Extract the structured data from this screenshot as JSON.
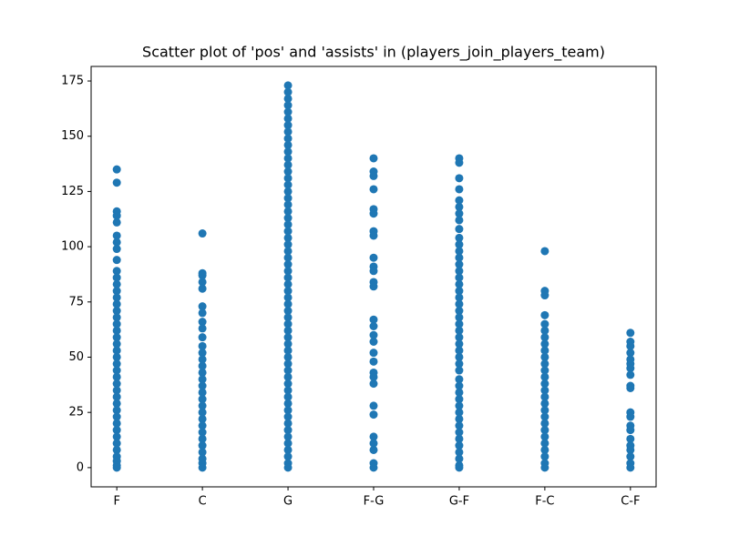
{
  "chart_data": {
    "type": "scatter",
    "title": "Scatter plot of 'pos' and 'assists' in (players_join_players_team)",
    "categories": [
      "F",
      "C",
      "G",
      "F-G",
      "G-F",
      "F-C",
      "C-F"
    ],
    "color": "#1f77b4",
    "ylim": [
      -8.7,
      181.6
    ],
    "yticks": [
      0,
      25,
      50,
      75,
      100,
      125,
      150,
      175
    ],
    "x": [
      "F",
      "F",
      "F",
      "F",
      "F",
      "F",
      "F",
      "F",
      "F",
      "F",
      "F",
      "F",
      "F",
      "F",
      "F",
      "F",
      "F",
      "F",
      "F",
      "F",
      "F",
      "F",
      "F",
      "F",
      "F",
      "F",
      "F",
      "F",
      "F",
      "F",
      "F",
      "F",
      "F",
      "F",
      "F",
      "F",
      "F",
      "F",
      "F",
      "F",
      "F",
      "C",
      "C",
      "C",
      "C",
      "C",
      "C",
      "C",
      "C",
      "C",
      "C",
      "C",
      "C",
      "C",
      "C",
      "C",
      "C",
      "C",
      "C",
      "C",
      "C",
      "C",
      "C",
      "C",
      "C",
      "C",
      "C",
      "C",
      "C",
      "C",
      "C",
      "G",
      "G",
      "G",
      "G",
      "G",
      "G",
      "G",
      "G",
      "G",
      "G",
      "G",
      "G",
      "G",
      "G",
      "G",
      "G",
      "G",
      "G",
      "G",
      "G",
      "G",
      "G",
      "G",
      "G",
      "G",
      "G",
      "G",
      "G",
      "G",
      "G",
      "G",
      "G",
      "G",
      "G",
      "G",
      "G",
      "G",
      "G",
      "G",
      "G",
      "G",
      "G",
      "G",
      "G",
      "G",
      "G",
      "G",
      "G",
      "G",
      "G",
      "G",
      "G",
      "G",
      "G",
      "G",
      "G",
      "G",
      "G",
      "G",
      "F-G",
      "F-G",
      "F-G",
      "F-G",
      "F-G",
      "F-G",
      "F-G",
      "F-G",
      "F-G",
      "F-G",
      "F-G",
      "F-G",
      "F-G",
      "F-G",
      "F-G",
      "F-G",
      "F-G",
      "F-G",
      "F-G",
      "F-G",
      "F-G",
      "F-G",
      "F-G",
      "F-G",
      "F-G",
      "F-G",
      "F-G",
      "F-G",
      "F-G",
      "G-F",
      "G-F",
      "G-F",
      "G-F",
      "G-F",
      "G-F",
      "G-F",
      "G-F",
      "G-F",
      "G-F",
      "G-F",
      "G-F",
      "G-F",
      "G-F",
      "G-F",
      "G-F",
      "G-F",
      "G-F",
      "G-F",
      "G-F",
      "G-F",
      "G-F",
      "G-F",
      "G-F",
      "G-F",
      "G-F",
      "G-F",
      "G-F",
      "G-F",
      "G-F",
      "G-F",
      "G-F",
      "G-F",
      "G-F",
      "G-F",
      "G-F",
      "G-F",
      "G-F",
      "G-F",
      "G-F",
      "G-F",
      "G-F",
      "G-F",
      "G-F",
      "G-F",
      "F-C",
      "F-C",
      "F-C",
      "F-C",
      "F-C",
      "F-C",
      "F-C",
      "F-C",
      "F-C",
      "F-C",
      "F-C",
      "F-C",
      "F-C",
      "F-C",
      "F-C",
      "F-C",
      "F-C",
      "F-C",
      "F-C",
      "F-C",
      "F-C",
      "F-C",
      "F-C",
      "F-C",
      "F-C",
      "F-C",
      "F-C",
      "C-F",
      "C-F",
      "C-F",
      "C-F",
      "C-F",
      "C-F",
      "C-F",
      "C-F",
      "C-F",
      "C-F",
      "C-F",
      "C-F",
      "C-F",
      "C-F",
      "C-F",
      "C-F",
      "C-F",
      "C-F",
      "C-F",
      "C-F"
    ],
    "values": [
      135,
      129,
      116,
      114,
      111,
      105,
      102,
      99,
      94,
      89,
      86,
      83,
      80,
      77,
      74,
      71,
      68,
      65,
      62,
      59,
      56,
      53,
      50,
      47,
      44,
      41,
      38,
      35,
      32,
      29,
      26,
      23,
      20,
      17,
      14,
      11,
      8,
      5,
      3,
      1,
      0,
      106,
      88,
      87,
      84,
      81,
      73,
      70,
      66,
      63,
      59,
      55,
      52,
      49,
      46,
      43,
      40,
      37,
      34,
      31,
      28,
      25,
      22,
      19,
      16,
      13,
      10,
      7,
      4,
      2,
      0,
      173,
      170,
      167,
      164,
      161,
      158,
      155,
      152,
      149,
      146,
      143,
      140,
      137,
      134,
      131,
      128,
      125,
      122,
      119,
      116,
      113,
      110,
      107,
      104,
      101,
      98,
      95,
      92,
      89,
      86,
      83,
      80,
      77,
      74,
      71,
      68,
      65,
      62,
      59,
      56,
      53,
      50,
      47,
      44,
      41,
      38,
      35,
      32,
      29,
      26,
      23,
      20,
      17,
      14,
      11,
      8,
      5,
      2,
      0,
      140,
      134,
      132,
      126,
      117,
      115,
      107,
      105,
      95,
      91,
      89,
      84,
      82,
      67,
      64,
      60,
      57,
      52,
      48,
      43,
      41,
      38,
      28,
      24,
      14,
      11,
      8,
      2,
      0,
      140,
      138,
      131,
      126,
      121,
      118,
      115,
      112,
      108,
      104,
      101,
      98,
      95,
      92,
      89,
      86,
      83,
      80,
      77,
      74,
      71,
      68,
      65,
      62,
      59,
      56,
      53,
      50,
      47,
      44,
      40,
      37,
      34,
      31,
      28,
      25,
      22,
      19,
      16,
      13,
      10,
      7,
      4,
      1,
      0,
      98,
      80,
      78,
      69,
      65,
      62,
      59,
      56,
      53,
      50,
      47,
      44,
      41,
      38,
      35,
      32,
      29,
      26,
      23,
      20,
      17,
      14,
      11,
      8,
      5,
      2,
      0,
      61,
      57,
      55,
      52,
      49,
      47,
      45,
      42,
      37,
      36,
      25,
      23,
      19,
      17,
      13,
      10,
      8,
      5,
      2,
      0
    ]
  }
}
